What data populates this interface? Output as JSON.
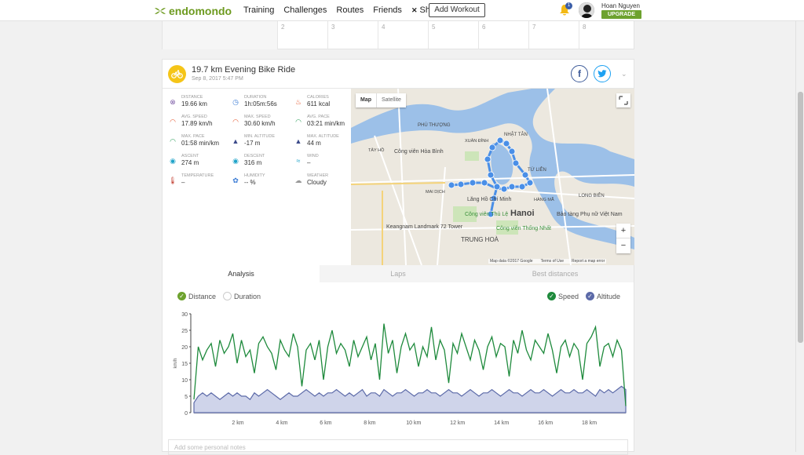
{
  "topbar": {
    "brand": "endomondo",
    "nav": [
      "Training",
      "Challenges",
      "Routes",
      "Friends",
      "Shop"
    ],
    "add_workout": "Add Workout",
    "notif_count": "1",
    "user_name": "Hoan Nguyen",
    "upgrade": "UPGRADE"
  },
  "calendar": {
    "days": [
      "2",
      "3",
      "4",
      "5",
      "6",
      "7",
      "8"
    ]
  },
  "workout": {
    "title": "19.7 km Evening Bike Ride",
    "date": "Sep 8, 2017 5:47 PM",
    "stats": [
      {
        "label": "Distance",
        "value": "19.66 km",
        "icon": "distance-icon",
        "color": "#7b5aa6"
      },
      {
        "label": "Duration",
        "value": "1h:05m:56s",
        "icon": "duration-icon",
        "color": "#3a7bd5"
      },
      {
        "label": "Calories",
        "value": "611 kcal",
        "icon": "calories-icon",
        "color": "#e4572e"
      },
      {
        "label": "Avg. Speed",
        "value": "17.89 km/h",
        "icon": "avg-speed-icon",
        "color": "#e4572e"
      },
      {
        "label": "Max. Speed",
        "value": "30.60 km/h",
        "icon": "max-speed-icon",
        "color": "#e4572e"
      },
      {
        "label": "Avg. Pace",
        "value": "03:21 min/km",
        "icon": "avg-pace-icon",
        "color": "#2e9e5b"
      },
      {
        "label": "Max. Pace",
        "value": "01:58 min/km",
        "icon": "max-pace-icon",
        "color": "#2e9e5b"
      },
      {
        "label": "Min. Altitude",
        "value": "-17 m",
        "icon": "min-altitude-icon",
        "color": "#3b4a8a"
      },
      {
        "label": "Max. Altitude",
        "value": "44 m",
        "icon": "max-altitude-icon",
        "color": "#3b4a8a"
      },
      {
        "label": "Ascent",
        "value": "274 m",
        "icon": "ascent-icon",
        "color": "#1fa3c9"
      },
      {
        "label": "Descent",
        "value": "316 m",
        "icon": "descent-icon",
        "color": "#1fa3c9"
      },
      {
        "label": "Wind",
        "value": "–",
        "icon": "wind-icon",
        "color": "#1fa3c9"
      },
      {
        "label": "Temperature",
        "value": "–",
        "icon": "temperature-icon",
        "color": "#c0392b"
      },
      {
        "label": "Humidity",
        "value": "-- %",
        "icon": "humidity-icon",
        "color": "#3a7bd5"
      },
      {
        "label": "Weather",
        "value": "Cloudy",
        "icon": "cloud-icon",
        "color": "#999999"
      }
    ]
  },
  "map": {
    "type_map": "Map",
    "type_satellite": "Satellite",
    "labels": [
      "Công viên Hòa Bình",
      "Hanoi",
      "Lăng Hồ Chí Minh",
      "TRUNG HOÀ",
      "Keangnam Landmark 72 Tower",
      "Bảo tàng Phụ nữ Việt Nam",
      "Công viên Thống Nhất",
      "Công viên Thủ Lệ",
      "LONG BIÊN",
      "TỨ LIÊN",
      "NHẬT TÂN",
      "PHÚ THƯỢNG",
      "XUÂN ĐỈNH",
      "MAI DỊCH",
      "HÀNG MÃ",
      "TÂY HỒ"
    ],
    "attribution": "Map data ©2017 Google",
    "terms": "Terms of Use",
    "report": "Report a map error",
    "zoom_in": "+",
    "zoom_out": "−"
  },
  "tabs": [
    "Analysis",
    "Laps",
    "Best distances"
  ],
  "legend": {
    "distance": "Distance",
    "duration": "Duration",
    "speed": "Speed",
    "altitude": "Altitude"
  },
  "notes_placeholder": "Add some personal notes",
  "colors": {
    "speed": "#1e8a3c",
    "altitude": "#5c6aa8",
    "altitude_fill": "#cfd4ea",
    "brand": "#6d9a1f"
  },
  "chart_data": {
    "type": "line",
    "ylabel": "km/h",
    "ylim": [
      0,
      30
    ],
    "yticks": [
      0,
      5,
      10,
      15,
      20,
      25,
      30
    ],
    "xlim": [
      0,
      19.66
    ],
    "xticks": [
      {
        "v": 2,
        "label": "2 km"
      },
      {
        "v": 4,
        "label": "4 km"
      },
      {
        "v": 6,
        "label": "6 km"
      },
      {
        "v": 8,
        "label": "8 km"
      },
      {
        "v": 10,
        "label": "10 km"
      },
      {
        "v": 12,
        "label": "12 km"
      },
      {
        "v": 14,
        "label": "14 km"
      },
      {
        "v": 16,
        "label": "16 km"
      },
      {
        "v": 18,
        "label": "18 km"
      }
    ],
    "series": [
      {
        "name": "Speed",
        "values": [
          4,
          20,
          16,
          19,
          21,
          14,
          22,
          18,
          20,
          24,
          15,
          22,
          17,
          19,
          12,
          21,
          23,
          20,
          18,
          13,
          22,
          19,
          17,
          24,
          20,
          8,
          19,
          21,
          16,
          22,
          10,
          20,
          25,
          18,
          21,
          19,
          14,
          22,
          17,
          20,
          23,
          16,
          21,
          10,
          27,
          18,
          22,
          12,
          20,
          24,
          19,
          21,
          14,
          20,
          17,
          26,
          16,
          22,
          19,
          9,
          21,
          18,
          24,
          20,
          16,
          22,
          19,
          13,
          20,
          23,
          17,
          21,
          20,
          11,
          22,
          18,
          25,
          19,
          16,
          22,
          20,
          18,
          24,
          19,
          12,
          20,
          22,
          17,
          21,
          19,
          10,
          21,
          23,
          26,
          14,
          20,
          21,
          17,
          22,
          19,
          2
        ]
      },
      {
        "name": "Altitude",
        "values": [
          3,
          5,
          6,
          5,
          6,
          5,
          4,
          5,
          6,
          5,
          6,
          5,
          5,
          4,
          6,
          5,
          6,
          7,
          6,
          5,
          4,
          5,
          6,
          5,
          5,
          6,
          7,
          6,
          5,
          6,
          5,
          6,
          6,
          7,
          6,
          5,
          6,
          5,
          6,
          7,
          5,
          6,
          6,
          5,
          7,
          6,
          5,
          6,
          6,
          7,
          6,
          5,
          6,
          6,
          7,
          6,
          6,
          5,
          6,
          7,
          6,
          6,
          5,
          6,
          7,
          6,
          5,
          6,
          6,
          7,
          6,
          5,
          6,
          7,
          6,
          6,
          5,
          6,
          7,
          6,
          6,
          7,
          6,
          5,
          6,
          7,
          6,
          6,
          7,
          6,
          6,
          7,
          6,
          5,
          7,
          6,
          7,
          6,
          7,
          8,
          7
        ]
      }
    ]
  }
}
